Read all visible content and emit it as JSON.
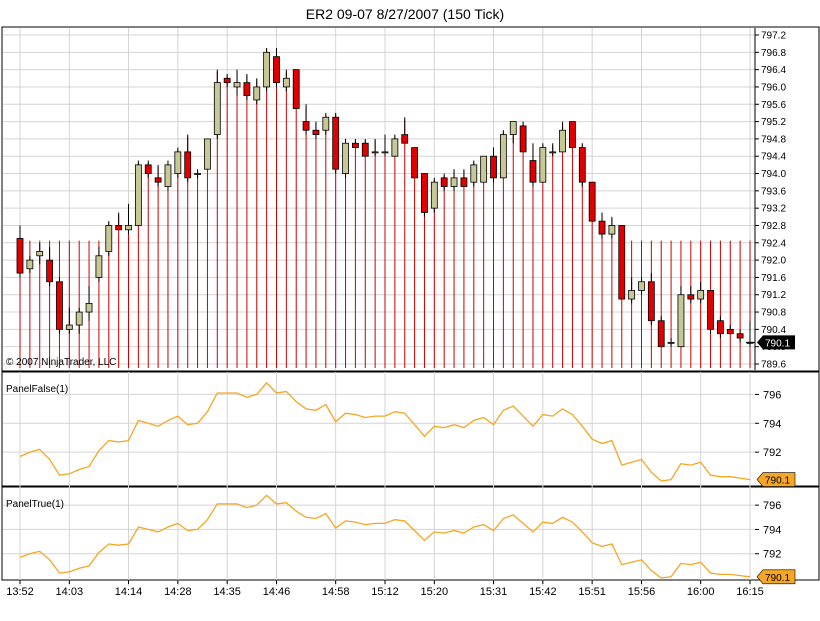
{
  "title": "ER2 09-07  8/27/2007  (150 Tick)",
  "copyright": "© 2007 NinjaTrader, LLC",
  "colors": {
    "up_body": "#c8c896",
    "down_body": "#e00000",
    "wick": "#000000",
    "volume": "#cc0000",
    "indicator": "#f5a623",
    "grid": "#d4d4d4",
    "last_badge_main": "#000000",
    "last_badge_indicator": "#f5a623"
  },
  "time_labels": [
    "13:52",
    "14:03",
    "14:14",
    "14:28",
    "14:35",
    "14:46",
    "14:58",
    "15:12",
    "15:20",
    "15:31",
    "15:42",
    "15:51",
    "15:56",
    "16:00",
    "16:15"
  ],
  "chart_data": [
    {
      "type": "candlestick",
      "panel": "price",
      "ylim": [
        789.6,
        797.2
      ],
      "yticks": [
        "797.2",
        "796.8",
        "796.4",
        "796.0",
        "795.6",
        "795.2",
        "794.8",
        "794.4",
        "794.0",
        "793.6",
        "793.2",
        "792.8",
        "792.4",
        "792.0",
        "791.6",
        "791.2",
        "790.8",
        "790.4",
        "790.0",
        "789.6"
      ],
      "last_value": "790.1",
      "candles": [
        {
          "o": 792.5,
          "h": 792.8,
          "l": 791.6,
          "c": 791.7
        },
        {
          "o": 791.8,
          "h": 792.1,
          "l": 791.7,
          "c": 792.0
        },
        {
          "o": 792.1,
          "h": 792.4,
          "l": 791.9,
          "c": 792.2
        },
        {
          "o": 792.0,
          "h": 792.3,
          "l": 791.4,
          "c": 791.5
        },
        {
          "o": 791.5,
          "h": 791.6,
          "l": 790.3,
          "c": 790.4
        },
        {
          "o": 790.4,
          "h": 790.9,
          "l": 790.3,
          "c": 790.5
        },
        {
          "o": 790.5,
          "h": 790.9,
          "l": 790.3,
          "c": 790.8
        },
        {
          "o": 790.8,
          "h": 791.4,
          "l": 790.6,
          "c": 791.0
        },
        {
          "o": 791.6,
          "h": 792.3,
          "l": 791.5,
          "c": 792.1
        },
        {
          "o": 792.2,
          "h": 792.9,
          "l": 792.1,
          "c": 792.8
        },
        {
          "o": 792.8,
          "h": 793.1,
          "l": 792.7,
          "c": 792.7
        },
        {
          "o": 792.7,
          "h": 793.3,
          "l": 792.6,
          "c": 792.8
        },
        {
          "o": 792.8,
          "h": 794.3,
          "l": 792.8,
          "c": 794.2
        },
        {
          "o": 794.2,
          "h": 794.3,
          "l": 793.9,
          "c": 794.0
        },
        {
          "o": 793.9,
          "h": 794.2,
          "l": 793.7,
          "c": 793.8
        },
        {
          "o": 793.7,
          "h": 794.3,
          "l": 793.6,
          "c": 794.2
        },
        {
          "o": 794.0,
          "h": 794.6,
          "l": 793.9,
          "c": 794.5
        },
        {
          "o": 794.5,
          "h": 794.9,
          "l": 793.8,
          "c": 793.9
        },
        {
          "o": 794.0,
          "h": 794.1,
          "l": 793.9,
          "c": 794.0
        },
        {
          "o": 794.1,
          "h": 794.8,
          "l": 794.1,
          "c": 794.8
        },
        {
          "o": 794.9,
          "h": 796.4,
          "l": 794.8,
          "c": 796.1
        },
        {
          "o": 796.2,
          "h": 796.3,
          "l": 796.0,
          "c": 796.1
        },
        {
          "o": 796.0,
          "h": 796.4,
          "l": 795.8,
          "c": 796.1
        },
        {
          "o": 796.1,
          "h": 796.3,
          "l": 795.7,
          "c": 795.8
        },
        {
          "o": 795.7,
          "h": 796.2,
          "l": 795.6,
          "c": 796.0
        },
        {
          "o": 796.0,
          "h": 796.9,
          "l": 795.9,
          "c": 796.8
        },
        {
          "o": 796.7,
          "h": 796.9,
          "l": 796.0,
          "c": 796.1
        },
        {
          "o": 796.0,
          "h": 796.4,
          "l": 795.9,
          "c": 796.2
        },
        {
          "o": 796.4,
          "h": 796.4,
          "l": 795.5,
          "c": 795.5
        },
        {
          "o": 795.2,
          "h": 795.6,
          "l": 794.9,
          "c": 795.0
        },
        {
          "o": 795.0,
          "h": 795.2,
          "l": 794.8,
          "c": 794.9
        },
        {
          "o": 795.0,
          "h": 795.4,
          "l": 794.9,
          "c": 795.3
        },
        {
          "o": 795.3,
          "h": 795.4,
          "l": 794.0,
          "c": 794.1
        },
        {
          "o": 794.0,
          "h": 794.8,
          "l": 793.9,
          "c": 794.7
        },
        {
          "o": 794.7,
          "h": 794.8,
          "l": 794.6,
          "c": 794.6
        },
        {
          "o": 794.7,
          "h": 794.8,
          "l": 794.4,
          "c": 794.4
        },
        {
          "o": 794.5,
          "h": 794.8,
          "l": 794.4,
          "c": 794.5
        },
        {
          "o": 794.5,
          "h": 794.9,
          "l": 794.4,
          "c": 794.5
        },
        {
          "o": 794.4,
          "h": 794.9,
          "l": 794.4,
          "c": 794.8
        },
        {
          "o": 794.9,
          "h": 795.3,
          "l": 794.7,
          "c": 794.7
        },
        {
          "o": 794.6,
          "h": 794.6,
          "l": 793.9,
          "c": 793.9
        },
        {
          "o": 794.0,
          "h": 794.0,
          "l": 793.0,
          "c": 793.1
        },
        {
          "o": 793.2,
          "h": 793.9,
          "l": 793.1,
          "c": 793.8
        },
        {
          "o": 793.9,
          "h": 794.0,
          "l": 793.6,
          "c": 793.7
        },
        {
          "o": 793.7,
          "h": 794.1,
          "l": 793.6,
          "c": 793.9
        },
        {
          "o": 793.9,
          "h": 794.1,
          "l": 793.7,
          "c": 793.7
        },
        {
          "o": 793.8,
          "h": 794.3,
          "l": 793.7,
          "c": 794.2
        },
        {
          "o": 793.8,
          "h": 794.4,
          "l": 793.8,
          "c": 794.4
        },
        {
          "o": 794.4,
          "h": 794.6,
          "l": 793.8,
          "c": 793.9
        },
        {
          "o": 793.9,
          "h": 795.0,
          "l": 793.9,
          "c": 794.9
        },
        {
          "o": 794.9,
          "h": 795.2,
          "l": 794.7,
          "c": 795.2
        },
        {
          "o": 795.1,
          "h": 795.2,
          "l": 794.5,
          "c": 794.5
        },
        {
          "o": 794.3,
          "h": 794.7,
          "l": 793.7,
          "c": 793.8
        },
        {
          "o": 793.8,
          "h": 794.7,
          "l": 793.8,
          "c": 794.6
        },
        {
          "o": 794.5,
          "h": 794.7,
          "l": 794.4,
          "c": 794.5
        },
        {
          "o": 794.5,
          "h": 795.2,
          "l": 794.5,
          "c": 795.0
        },
        {
          "o": 795.2,
          "h": 795.2,
          "l": 794.6,
          "c": 794.6
        },
        {
          "o": 794.6,
          "h": 794.7,
          "l": 793.7,
          "c": 793.8
        },
        {
          "o": 793.8,
          "h": 793.8,
          "l": 792.9,
          "c": 792.9
        },
        {
          "o": 792.9,
          "h": 793.1,
          "l": 792.5,
          "c": 792.6
        },
        {
          "o": 792.6,
          "h": 793.0,
          "l": 792.5,
          "c": 792.8
        },
        {
          "o": 792.8,
          "h": 792.8,
          "l": 791.1,
          "c": 791.1
        },
        {
          "o": 791.1,
          "h": 791.6,
          "l": 791.0,
          "c": 791.3
        },
        {
          "o": 791.3,
          "h": 791.6,
          "l": 791.2,
          "c": 791.5
        },
        {
          "o": 791.5,
          "h": 791.7,
          "l": 790.5,
          "c": 790.6
        },
        {
          "o": 790.6,
          "h": 790.7,
          "l": 790.0,
          "c": 790.0
        },
        {
          "o": 790.1,
          "h": 790.2,
          "l": 790.0,
          "c": 790.1
        },
        {
          "o": 790.0,
          "h": 791.4,
          "l": 790.0,
          "c": 791.2
        },
        {
          "o": 791.2,
          "h": 791.4,
          "l": 791.0,
          "c": 791.1
        },
        {
          "o": 791.1,
          "h": 791.5,
          "l": 791.0,
          "c": 791.3
        },
        {
          "o": 791.3,
          "h": 791.3,
          "l": 790.3,
          "c": 790.4
        },
        {
          "o": 790.6,
          "h": 790.7,
          "l": 790.2,
          "c": 790.3
        },
        {
          "o": 790.4,
          "h": 790.5,
          "l": 790.3,
          "c": 790.3
        },
        {
          "o": 790.3,
          "h": 790.4,
          "l": 790.1,
          "c": 790.2
        },
        {
          "o": 790.1,
          "h": 790.6,
          "l": 790.0,
          "c": 790.1
        }
      ]
    },
    {
      "type": "line",
      "panel": "indicator",
      "name": "PanelFalse(1)",
      "ylim": [
        790.0,
        797.0
      ],
      "yticks": [
        "796",
        "794",
        "792"
      ],
      "last_value": "790.1"
    },
    {
      "type": "line",
      "panel": "indicator",
      "name": "PanelTrue(1)",
      "ylim": [
        790.0,
        797.0
      ],
      "yticks": [
        "796",
        "794",
        "792"
      ],
      "last_value": "790.1"
    }
  ]
}
